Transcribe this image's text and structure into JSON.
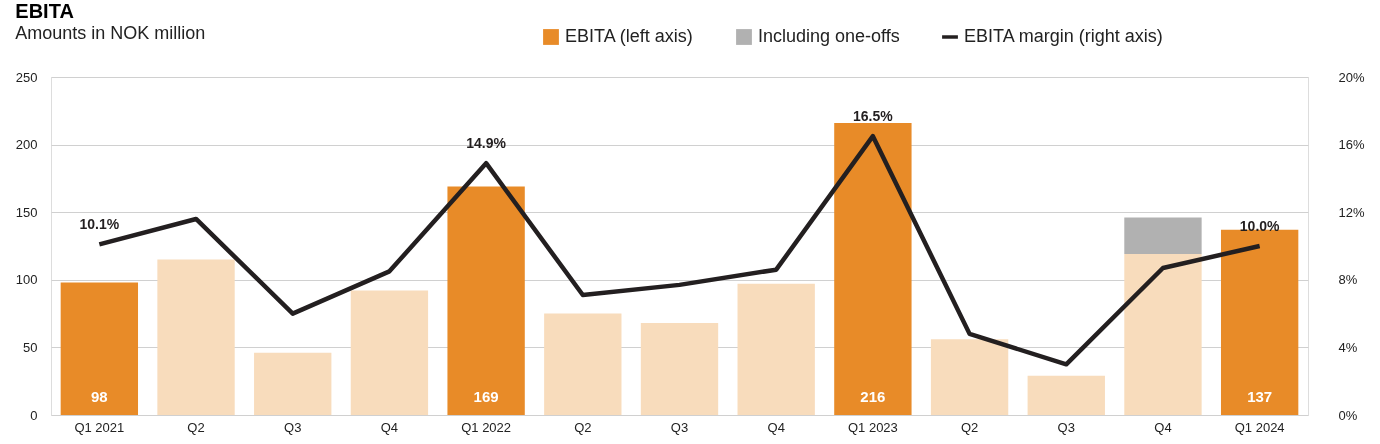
{
  "chart_data": {
    "type": "bar",
    "title": "EBITA",
    "subtitle": "Amounts in NOK million",
    "categories": [
      "Q1 2021",
      "Q2",
      "Q3",
      "Q4",
      "Q1 2022",
      "Q2",
      "Q3",
      "Q4",
      "Q1 2023",
      "Q2",
      "Q3",
      "Q4",
      "Q1 2024"
    ],
    "stacked": true,
    "series": [
      {
        "name": "EBITA (left axis)",
        "color": "#e88b28",
        "colors": [
          "#e88b28",
          "#f8dcbc",
          "#f8dcbc",
          "#f8dcbc",
          "#e88b28",
          "#f8dcbc",
          "#f8dcbc",
          "#f8dcbc",
          "#e88b28",
          "#f8dcbc",
          "#f8dcbc",
          "#f8dcbc",
          "#e88b28"
        ],
        "values": [
          98,
          115,
          46,
          92,
          169,
          75,
          68,
          97,
          216,
          56,
          29,
          119,
          137
        ],
        "value_labels": [
          "98",
          null,
          null,
          null,
          "169",
          null,
          null,
          null,
          "216",
          null,
          null,
          null,
          "137"
        ]
      },
      {
        "name": "Including one-offs",
        "color": "#b1b1b1",
        "values": [
          null,
          null,
          null,
          null,
          null,
          null,
          null,
          null,
          null,
          null,
          null,
          27,
          null
        ]
      },
      {
        "name": "EBITA margin (right axis)",
        "type": "line",
        "axis": "y2",
        "color": "#231f20",
        "values": [
          10.1,
          11.6,
          6.0,
          8.5,
          14.9,
          7.1,
          7.7,
          8.6,
          16.5,
          4.8,
          3.0,
          8.7,
          10.0
        ],
        "value_labels": [
          "10.1%",
          null,
          null,
          null,
          "14.9%",
          null,
          null,
          null,
          "16.5%",
          null,
          null,
          null,
          "10.0%"
        ]
      }
    ],
    "ylim": [
      0,
      250
    ],
    "yticks": [
      0,
      50,
      100,
      150,
      200,
      250
    ],
    "y2lim": [
      0,
      20
    ],
    "y2ticks": [
      {
        "value": 0,
        "label": "0%"
      },
      {
        "value": 4,
        "label": "4%"
      },
      {
        "value": 8,
        "label": "8%"
      },
      {
        "value": 12,
        "label": "12%"
      },
      {
        "value": 16,
        "label": "16%"
      },
      {
        "value": 20,
        "label": "20%"
      }
    ],
    "grid": "y",
    "legend": "top right",
    "marker": "none",
    "line_style": "solid"
  }
}
